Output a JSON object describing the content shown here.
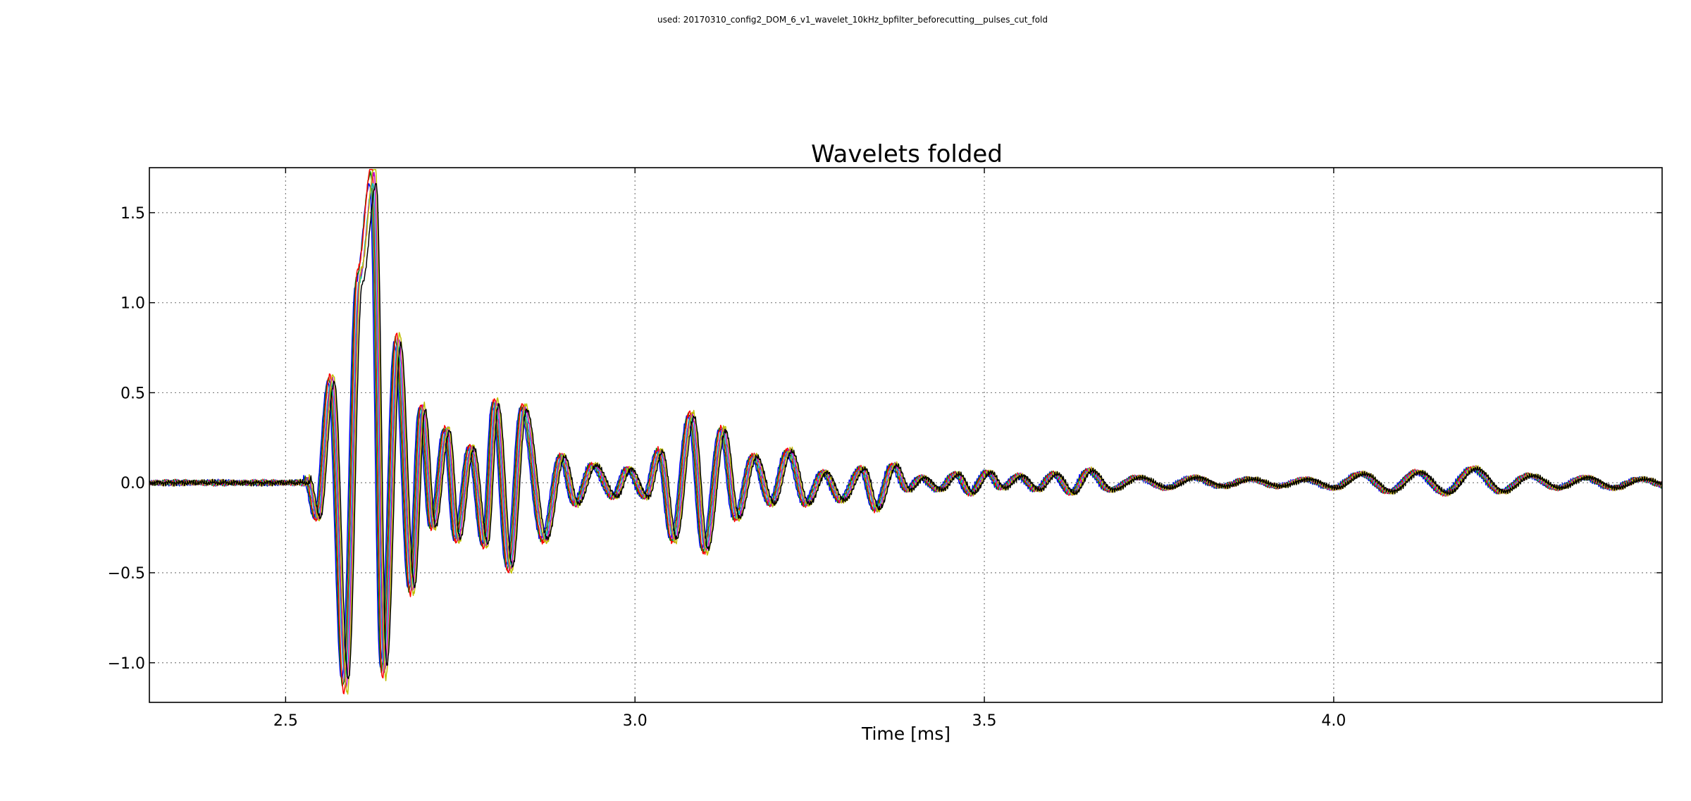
{
  "figure": {
    "suptitle": "used: 20170310_config2_DOM_6_v1_wavelet_10kHz_bpfilter_beforecutting__pulses_cut_fold"
  },
  "chart_data": {
    "type": "line",
    "title": "Wavelets folded",
    "xlabel": "Time [ms]",
    "ylabel": "",
    "xlim": [
      2.305,
      4.47
    ],
    "ylim": [
      -1.22,
      1.75
    ],
    "xticks": [
      2.5,
      3.0,
      3.5,
      4.0
    ],
    "xtick_labels": [
      "2.5",
      "3.0",
      "3.5",
      "4.0"
    ],
    "yticks": [
      -1.0,
      -0.5,
      0.0,
      0.5,
      1.0,
      1.5
    ],
    "ytick_labels": [
      "−1.0",
      "−0.5",
      "0.0",
      "0.5",
      "1.0",
      "1.5"
    ],
    "grid": true,
    "legend": "none",
    "series_colors": [
      "#0000ff",
      "#008000",
      "#ff0000",
      "#00bfbf",
      "#bf00bf",
      "#bfbf00",
      "#000000"
    ],
    "peaks_x": [
      2.53,
      2.545,
      2.565,
      2.585,
      2.605,
      2.625,
      2.64,
      2.66,
      2.68,
      2.695,
      2.71,
      2.73,
      2.745,
      2.765,
      2.785,
      2.8,
      2.82,
      2.84,
      2.87,
      2.895,
      2.915,
      2.94,
      2.97,
      2.99,
      3.015,
      3.035,
      3.055,
      3.08,
      3.1,
      3.125,
      3.145,
      3.17,
      3.195,
      3.22,
      3.245,
      3.27,
      3.295,
      3.325,
      3.345,
      3.37,
      3.39,
      3.41,
      3.435,
      3.46,
      3.48,
      3.505,
      3.525,
      3.55,
      3.575,
      3.6,
      3.625,
      3.65,
      3.68,
      3.72,
      3.76,
      3.8,
      3.84,
      3.88,
      3.92,
      3.96,
      4.0,
      4.04,
      4.08,
      4.12,
      4.16,
      4.2,
      4.24,
      4.28,
      4.32,
      4.36,
      4.4,
      4.44
    ],
    "peaks_y": [
      0.03,
      -0.2,
      0.58,
      -1.13,
      1.15,
      1.72,
      -1.05,
      0.8,
      -0.6,
      0.42,
      -0.25,
      0.3,
      -0.32,
      0.2,
      -0.35,
      0.45,
      -0.48,
      0.42,
      -0.32,
      0.15,
      -0.12,
      0.1,
      -0.08,
      0.08,
      -0.08,
      0.18,
      -0.32,
      0.38,
      -0.38,
      0.3,
      -0.2,
      0.15,
      -0.12,
      0.18,
      -0.12,
      0.06,
      -0.1,
      0.08,
      -0.15,
      0.1,
      -0.04,
      0.03,
      -0.04,
      0.05,
      -0.06,
      0.06,
      -0.03,
      0.04,
      -0.04,
      0.05,
      -0.06,
      0.07,
      -0.04,
      0.03,
      -0.03,
      0.03,
      -0.02,
      0.02,
      -0.02,
      0.02,
      -0.03,
      0.05,
      -0.05,
      0.06,
      -0.06,
      0.08,
      -0.05,
      0.04,
      -0.03,
      0.03,
      -0.03,
      0.02
    ],
    "series_count": 7
  }
}
